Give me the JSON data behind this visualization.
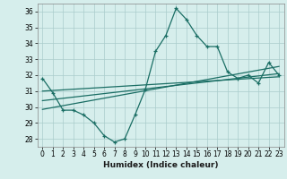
{
  "title": "",
  "xlabel": "Humidex (Indice chaleur)",
  "background_color": "#d6eeec",
  "grid_color": "#aacccc",
  "line_color": "#1a6e64",
  "xlim": [
    -0.5,
    23.5
  ],
  "ylim": [
    27.5,
    36.5
  ],
  "xticks": [
    0,
    1,
    2,
    3,
    4,
    5,
    6,
    7,
    8,
    9,
    10,
    11,
    12,
    13,
    14,
    15,
    16,
    17,
    18,
    19,
    20,
    21,
    22,
    23
  ],
  "yticks": [
    28,
    29,
    30,
    31,
    32,
    33,
    34,
    35,
    36
  ],
  "main_y": [
    31.8,
    30.9,
    29.8,
    29.8,
    29.5,
    29.0,
    28.2,
    27.8,
    28.0,
    29.5,
    31.1,
    33.5,
    34.5,
    36.2,
    35.5,
    34.5,
    33.8,
    33.8,
    32.2,
    31.8,
    32.0,
    31.5,
    32.8,
    32.0
  ],
  "line1_y0": 31.0,
  "line1_y1": 31.9,
  "line2_y0": 30.4,
  "line2_y1": 32.1,
  "line3_y0": 29.85,
  "line3_y1": 32.55
}
